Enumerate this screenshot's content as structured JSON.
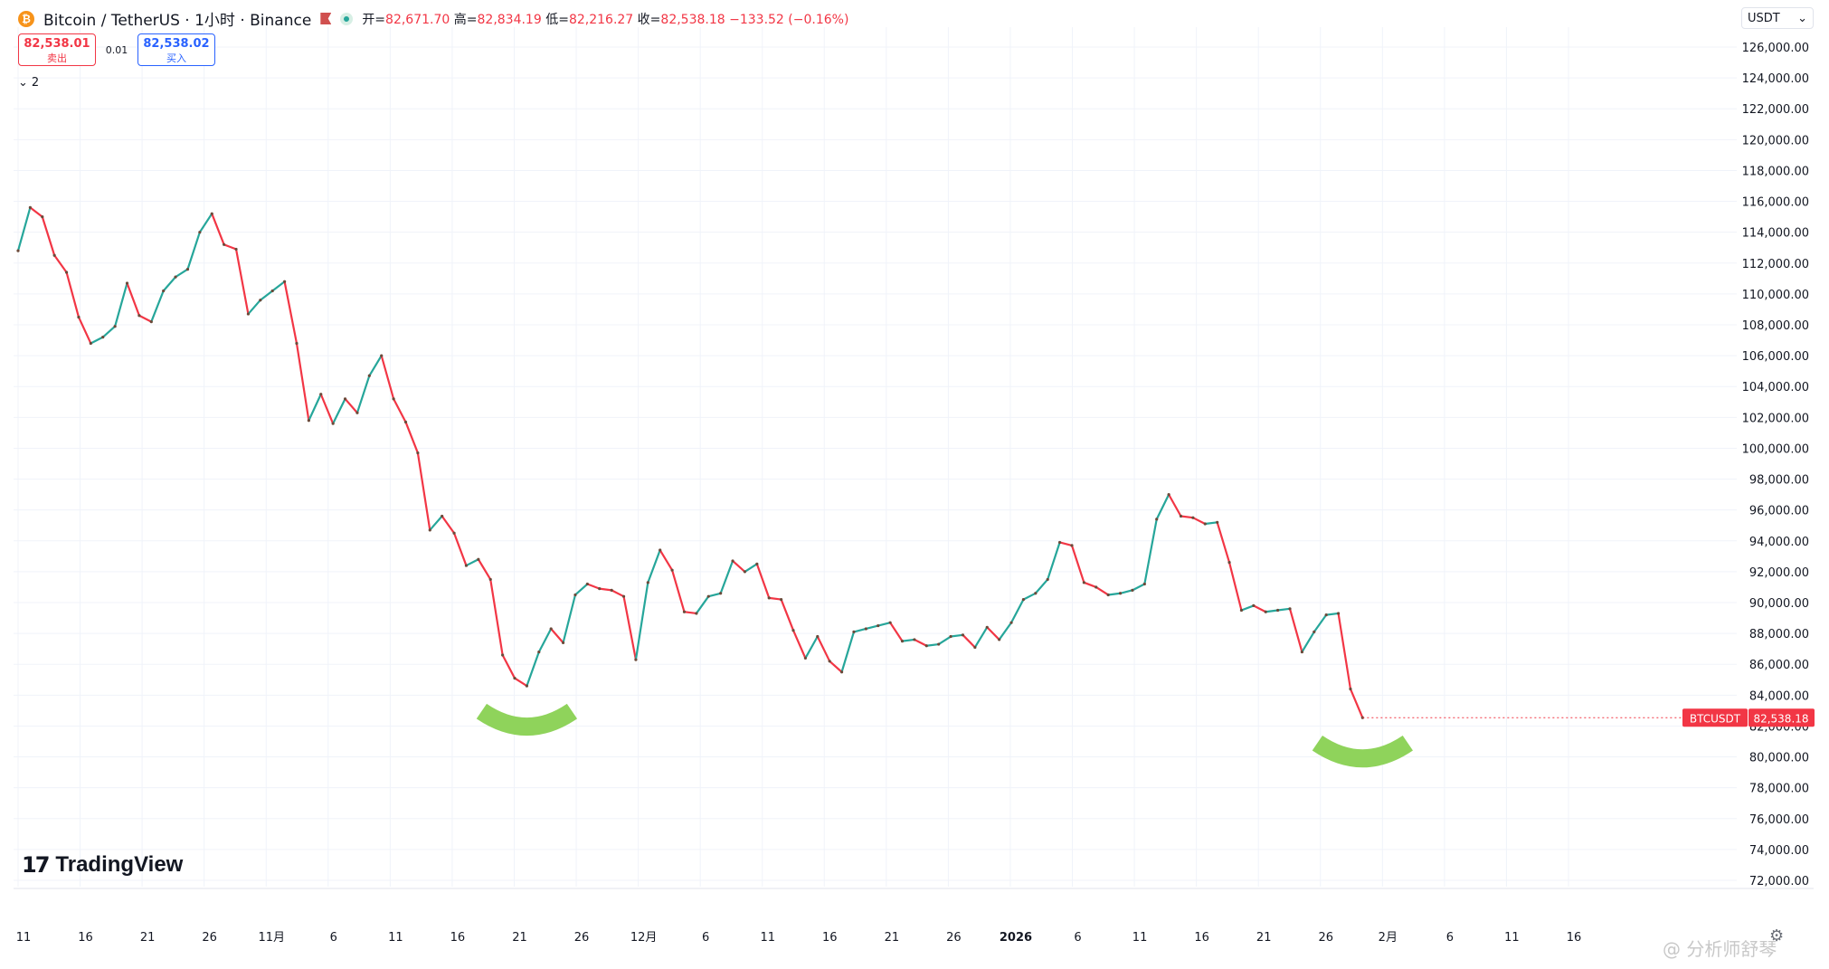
{
  "header": {
    "symbol": "Bitcoin / TetherUS · 1小时 · Binance",
    "open_label": "开=",
    "open": "82,671.70",
    "high_label": "高=",
    "high": "82,834.19",
    "low_label": "低=",
    "low": "82,216.27",
    "close_label": "收=",
    "close": "82,538.18",
    "change": "−133.52 (−0.16%)",
    "coin_glyph": "₿"
  },
  "trade": {
    "sell_price": "82,538.01",
    "sell_label": "卖出",
    "spread": "0.01",
    "buy_price": "82,538.02",
    "buy_label": "买入"
  },
  "indicator_toggle": {
    "count": "2"
  },
  "currency_select": {
    "value": "USDT"
  },
  "price_tag": {
    "symbol": "BTCUSDT",
    "price": "82,538.18"
  },
  "branding": {
    "logo_text": "TradingView",
    "watermark": "@ 分析师舒琴"
  },
  "colors": {
    "up": "#26a69a",
    "down": "#f23645",
    "price_tag": "#f23645",
    "highlight": "#8fd35b"
  },
  "chart_data": {
    "type": "line",
    "title": "",
    "x_axis": {
      "type": "date",
      "range": [
        "2025-10-11",
        "2026-02-16"
      ],
      "ticks": [
        "11",
        "16",
        "21",
        "26",
        "11月",
        "6",
        "11",
        "16",
        "21",
        "26",
        "12月",
        "6",
        "11",
        "16",
        "21",
        "26",
        "2026",
        "6",
        "11",
        "16",
        "21",
        "26",
        "2月",
        "6",
        "11",
        "16"
      ]
    },
    "y_axis": {
      "range": [
        72000,
        126000
      ],
      "ticks": [
        "126,000.00",
        "124,000.00",
        "122,000.00",
        "120,000.00",
        "118,000.00",
        "116,000.00",
        "114,000.00",
        "112,000.00",
        "110,000.00",
        "108,000.00",
        "106,000.00",
        "104,000.00",
        "102,000.00",
        "100,000.00",
        "98,000.00",
        "96,000.00",
        "94,000.00",
        "92,000.00",
        "90,000.00",
        "88,000.00",
        "86,000.00",
        "84,000.00",
        "82,000.00",
        "80,000.00",
        "78,000.00",
        "76,000.00",
        "74,000.00",
        "72,000.00"
      ]
    },
    "series": [
      {
        "values": [
          [
            "2025-10-11",
            112800
          ],
          [
            "2025-10-12",
            115600
          ],
          [
            "2025-10-13",
            115000
          ],
          [
            "2025-10-14",
            112500
          ],
          [
            "2025-10-15",
            111400
          ],
          [
            "2025-10-16",
            108500
          ],
          [
            "2025-10-17",
            106800
          ],
          [
            "2025-10-18",
            107200
          ],
          [
            "2025-10-19",
            107900
          ],
          [
            "2025-10-20",
            110700
          ],
          [
            "2025-10-21",
            108600
          ],
          [
            "2025-10-22",
            108200
          ],
          [
            "2025-10-23",
            110200
          ],
          [
            "2025-10-24",
            111100
          ],
          [
            "2025-10-25",
            111600
          ],
          [
            "2025-10-26",
            114000
          ],
          [
            "2025-10-27",
            115200
          ],
          [
            "2025-10-28",
            113200
          ],
          [
            "2025-10-29",
            112900
          ],
          [
            "2025-10-30",
            108700
          ],
          [
            "2025-10-31",
            109600
          ],
          [
            "2025-11-01",
            110200
          ],
          [
            "2025-11-02",
            110800
          ],
          [
            "2025-11-03",
            106800
          ],
          [
            "2025-11-04",
            101800
          ],
          [
            "2025-11-05",
            103500
          ],
          [
            "2025-11-06",
            101600
          ],
          [
            "2025-11-07",
            103200
          ],
          [
            "2025-11-08",
            102300
          ],
          [
            "2025-11-09",
            104700
          ],
          [
            "2025-11-10",
            106000
          ],
          [
            "2025-11-11",
            103200
          ],
          [
            "2025-11-12",
            101700
          ],
          [
            "2025-11-13",
            99700
          ],
          [
            "2025-11-14",
            94700
          ],
          [
            "2025-11-15",
            95600
          ],
          [
            "2025-11-16",
            94500
          ],
          [
            "2025-11-17",
            92400
          ],
          [
            "2025-11-18",
            92800
          ],
          [
            "2025-11-19",
            91500
          ],
          [
            "2025-11-20",
            86600
          ],
          [
            "2025-11-21",
            85100
          ],
          [
            "2025-11-22",
            84600
          ],
          [
            "2025-11-23",
            86800
          ],
          [
            "2025-11-24",
            88300
          ],
          [
            "2025-11-25",
            87400
          ],
          [
            "2025-11-26",
            90500
          ],
          [
            "2025-11-27",
            91200
          ],
          [
            "2025-11-28",
            90900
          ],
          [
            "2025-11-29",
            90800
          ],
          [
            "2025-11-30",
            90400
          ],
          [
            "2025-12-01",
            86300
          ],
          [
            "2025-12-02",
            91300
          ],
          [
            "2025-12-03",
            93400
          ],
          [
            "2025-12-04",
            92100
          ],
          [
            "2025-12-05",
            89400
          ],
          [
            "2025-12-06",
            89300
          ],
          [
            "2025-12-07",
            90400
          ],
          [
            "2025-12-08",
            90600
          ],
          [
            "2025-12-09",
            92700
          ],
          [
            "2025-12-10",
            92000
          ],
          [
            "2025-12-11",
            92500
          ],
          [
            "2025-12-12",
            90300
          ],
          [
            "2025-12-13",
            90200
          ],
          [
            "2025-12-14",
            88200
          ],
          [
            "2025-12-15",
            86400
          ],
          [
            "2025-12-16",
            87800
          ],
          [
            "2025-12-17",
            86200
          ],
          [
            "2025-12-18",
            85500
          ],
          [
            "2025-12-19",
            88100
          ],
          [
            "2025-12-20",
            88300
          ],
          [
            "2025-12-21",
            88500
          ],
          [
            "2025-12-22",
            88700
          ],
          [
            "2025-12-23",
            87500
          ],
          [
            "2025-12-24",
            87600
          ],
          [
            "2025-12-25",
            87200
          ],
          [
            "2025-12-26",
            87300
          ],
          [
            "2025-12-27",
            87800
          ],
          [
            "2025-12-28",
            87900
          ],
          [
            "2025-12-29",
            87100
          ],
          [
            "2025-12-30",
            88400
          ],
          [
            "2025-12-31",
            87600
          ],
          [
            "2026-01-01",
            88700
          ],
          [
            "2026-01-02",
            90200
          ],
          [
            "2026-01-03",
            90600
          ],
          [
            "2026-01-04",
            91500
          ],
          [
            "2026-01-05",
            93900
          ],
          [
            "2026-01-06",
            93700
          ],
          [
            "2026-01-07",
            91300
          ],
          [
            "2026-01-08",
            91000
          ],
          [
            "2026-01-09",
            90500
          ],
          [
            "2026-01-10",
            90600
          ],
          [
            "2026-01-11",
            90800
          ],
          [
            "2026-01-12",
            91200
          ],
          [
            "2026-01-13",
            95400
          ],
          [
            "2026-01-14",
            97000
          ],
          [
            "2026-01-15",
            95600
          ],
          [
            "2026-01-16",
            95500
          ],
          [
            "2026-01-17",
            95100
          ],
          [
            "2026-01-18",
            95200
          ],
          [
            "2026-01-19",
            92600
          ],
          [
            "2026-01-20",
            89500
          ],
          [
            "2026-01-21",
            89800
          ],
          [
            "2026-01-22",
            89400
          ],
          [
            "2026-01-23",
            89500
          ],
          [
            "2026-01-24",
            89600
          ],
          [
            "2026-01-25",
            86800
          ],
          [
            "2026-01-26",
            88100
          ],
          [
            "2026-01-27",
            89200
          ],
          [
            "2026-01-28",
            89300
          ],
          [
            "2026-01-29",
            84400
          ],
          [
            "2026-01-30",
            82538
          ]
        ]
      }
    ],
    "grid": true,
    "legend": "none",
    "annotations": [
      "green arc below low around 2025-11-21",
      "green arc below low around 2026-01-30"
    ]
  }
}
